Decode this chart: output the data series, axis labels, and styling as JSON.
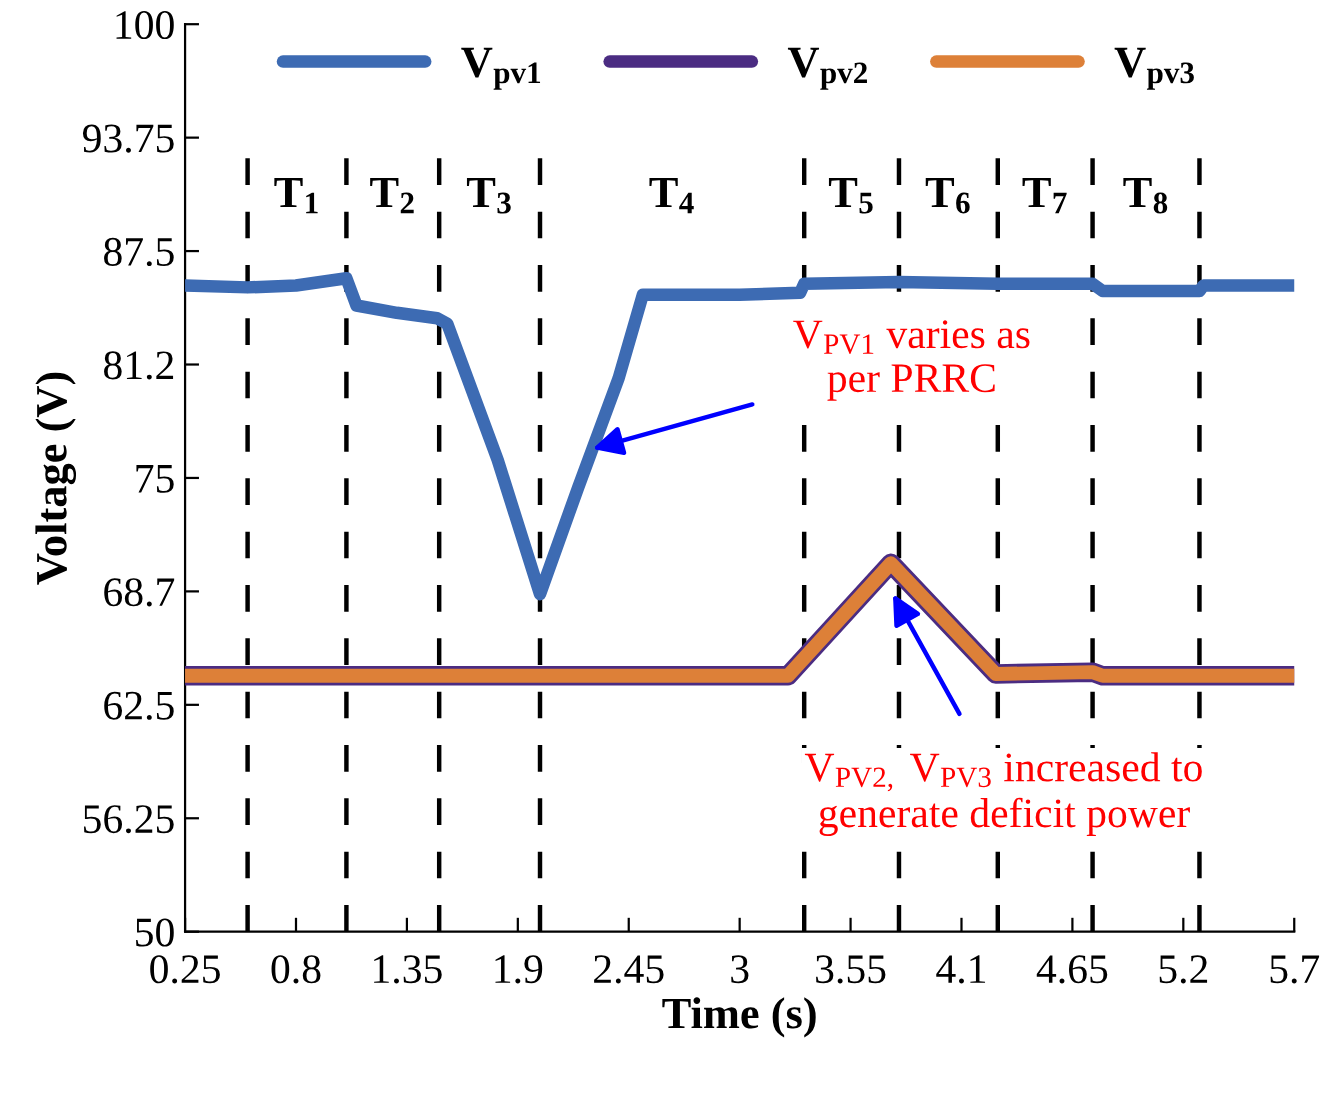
{
  "chart_data": {
    "type": "line",
    "xlabel": "Time (s)",
    "ylabel": "Voltage (V)",
    "xlim": [
      0.25,
      5.75
    ],
    "xticks": [
      0.25,
      0.8,
      1.35,
      1.9,
      2.45,
      3,
      3.55,
      4.1,
      4.65,
      5.2,
      {
        "value": 5.75,
        "label": "5.7"
      }
    ],
    "ylim": [
      50,
      100
    ],
    "yticks": [
      50,
      56.25,
      62.5,
      {
        "value": 68.75,
        "label": "68.7"
      },
      75,
      {
        "value": 81.25,
        "label": "81.2"
      },
      87.5,
      93.75,
      100
    ],
    "grid": false,
    "legend": "top",
    "line_style": "solid",
    "marker": "none",
    "series": [
      {
        "name": "V$_{pv1}$",
        "color": "#3d6bb3",
        "x": [
          0.25,
          0.56,
          0.8,
          1.05,
          1.1,
          1.3,
          1.5,
          1.55,
          1.8,
          2.01,
          2.2,
          2.4,
          2.52,
          3.0,
          3.3,
          3.32,
          3.79,
          4.28,
          4.75,
          4.8,
          5.28,
          5.3,
          5.75
        ],
        "values": [
          85.6,
          85.5,
          85.6,
          86.0,
          84.5,
          84.1,
          83.8,
          83.5,
          76.0,
          68.6,
          74.5,
          80.5,
          85.1,
          85.1,
          85.2,
          85.7,
          85.8,
          85.7,
          85.7,
          85.3,
          85.3,
          85.6,
          85.6
        ]
      },
      {
        "name": "V$_{pv2}$",
        "color": "#4b2c82",
        "x": [
          0.25,
          3.24,
          3.75,
          4.27,
          4.75,
          4.8,
          5.75
        ],
        "values": [
          64.1,
          64.1,
          70.3,
          64.2,
          64.3,
          64.1,
          64.1
        ]
      },
      {
        "name": "V$_{pv3}$",
        "color": "#dd8038",
        "x": [
          0.25,
          3.24,
          3.75,
          4.27,
          4.75,
          4.8,
          5.75
        ],
        "values": [
          64.1,
          64.1,
          70.3,
          64.2,
          64.3,
          64.1,
          64.1
        ]
      }
    ],
    "ref_lines": [
      {
        "axis": "x",
        "value": 0.56,
        "color": "#000000",
        "line_style": "dashed"
      },
      {
        "axis": "x",
        "value": 1.05,
        "color": "#000000",
        "line_style": "dashed"
      },
      {
        "axis": "x",
        "value": 1.51,
        "color": "#000000",
        "line_style": "dashed"
      },
      {
        "axis": "x",
        "value": 2.01,
        "color": "#000000",
        "line_style": "dashed"
      },
      {
        "axis": "x",
        "value": 3.32,
        "color": "#000000",
        "line_style": "dashed"
      },
      {
        "axis": "x",
        "value": 3.79,
        "color": "#000000",
        "line_style": "dashed"
      },
      {
        "axis": "x",
        "value": 4.28,
        "color": "#000000",
        "line_style": "dashed"
      },
      {
        "axis": "x",
        "value": 4.75,
        "color": "#000000",
        "line_style": "dashed"
      },
      {
        "axis": "x",
        "value": 5.28,
        "color": "#000000",
        "line_style": "dashed"
      }
    ],
    "annotations": [
      "T$_{1}$",
      "T$_{2}$",
      "T$_{3}$",
      "T$_{4}$",
      "T$_{5}$",
      "T$_{6}$",
      "T$_{7}$",
      "T$_{8}$",
      {
        "text": "V$_{PV1}$ varies as\nper PRRC",
        "x": 2.27,
        "y": 76.6
      },
      {
        "text": "V$_{PV2,}$ V$_{PV3}$ increased to\ngenerate deficit power",
        "x": 3.76,
        "y": 68.6
      }
    ]
  }
}
